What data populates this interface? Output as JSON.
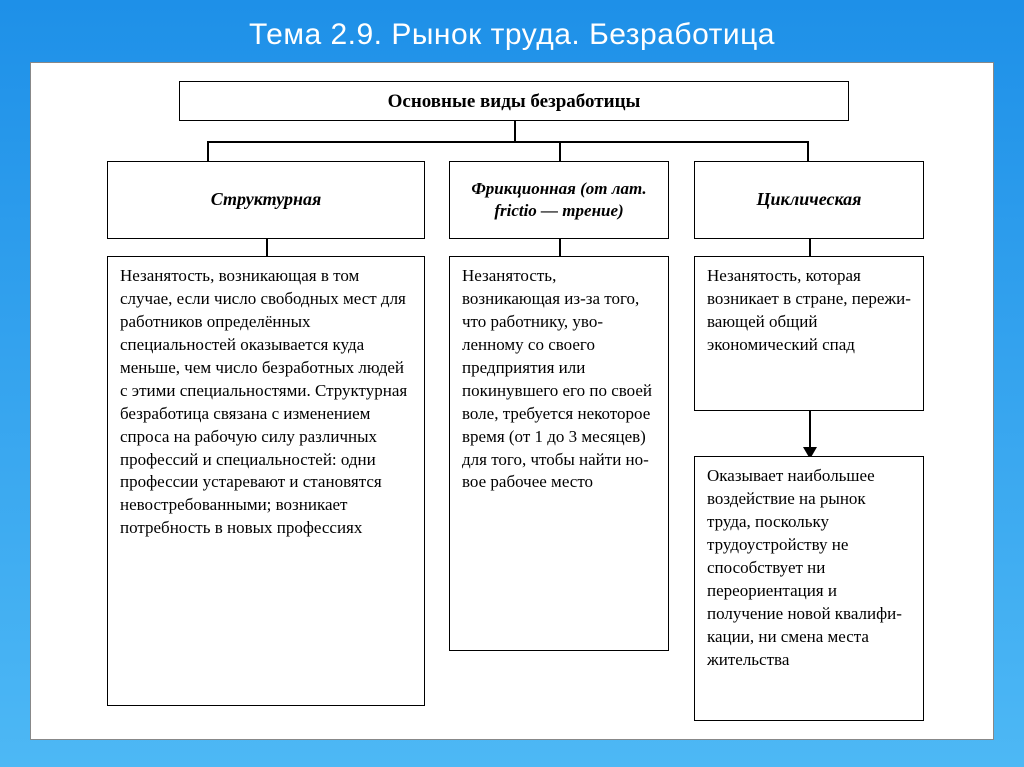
{
  "slide": {
    "title": "Тема 2.9. Рынок труда. Безработица",
    "bg_gradient_from": "#1e90e8",
    "bg_gradient_to": "#4db8f5",
    "title_color": "#ffffff",
    "title_fontsize": 30
  },
  "diagram": {
    "type": "tree",
    "border_color": "#000000",
    "background_color": "#ffffff",
    "font_family": "Georgia",
    "main": {
      "text": "Основные виды безработицы",
      "fontsize": 19,
      "weight": "bold"
    },
    "columns": [
      {
        "header": "Структурная",
        "header_style": "italic-bold",
        "body": "Незанятость, возникаю­щая в том случае, если чис­ло свободных мест для ра­ботников определённых специальностей оказыва­ется куда меньше, чем чис­ло безработных людей с этими специальностями. Структурная безработица связана с изменением спро­са на рабочую силу различ­ных профессий и специаль­ностей: одни профессии ус­таревают и становятся невостребованными; воз­никает потребность в но­вых профессиях"
      },
      {
        "header": "Фрикционная (от лат. frictio — трение)",
        "header_style": "italic-bold",
        "body": "Незанятость, возникающая из-за того, что работнику, уво­ленному со свое­го предприятия или покинувше­го его по своей воле, требуется некоторое время (от 1 до 3 меся­цев) для того, чтобы найти но­вое рабочее место"
      },
      {
        "header": "Циклическая",
        "header_style": "italic-bold",
        "body": "Незанятость, ко­торая возникает в стране, пережи­вающей общий экономический спад",
        "extra": "Оказывает наи­большее воздей­ствие на рынок труда, поскольку трудоустройству не способствует ни переориента­ция и получение новой квалифи­кации, ни смена места жительства",
        "arrow_to_extra": true
      }
    ],
    "body_fontsize": 17,
    "header_fontsize": 18
  }
}
